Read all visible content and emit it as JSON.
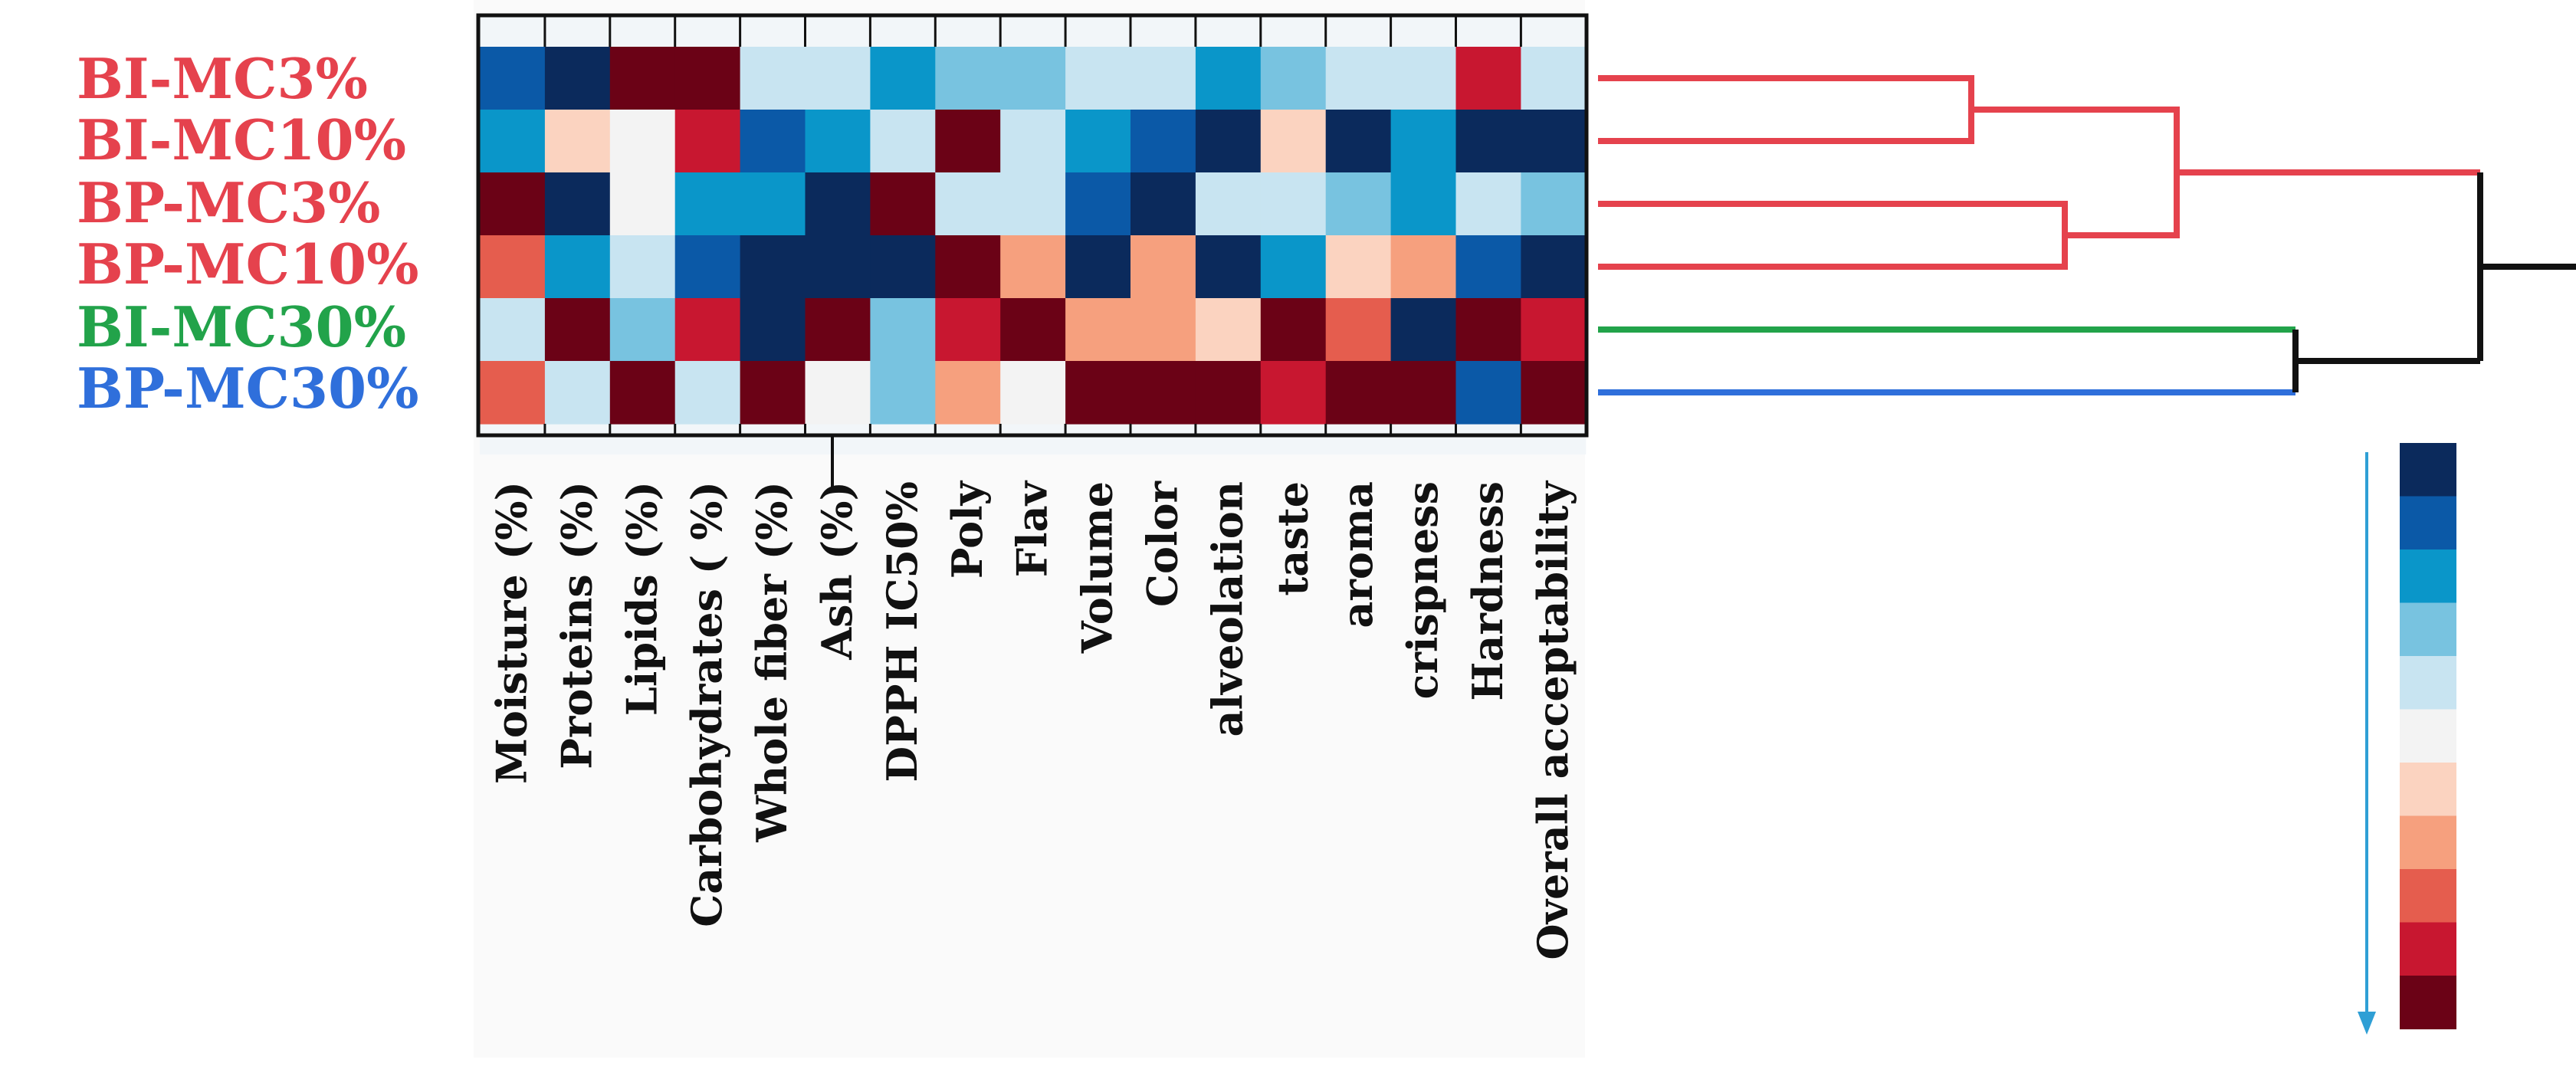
{
  "chart_data": {
    "type": "heatmap",
    "title": "",
    "rows": [
      "BI-MC3%",
      "BI-MC10%",
      "BP-MC3%",
      "BP-MC10%",
      "BI-MC30%",
      "BP-MC30%"
    ],
    "row_label_colors": [
      "#e5424d",
      "#e5424d",
      "#e5424d",
      "#e5424d",
      "#22a34a",
      "#2f6fdb"
    ],
    "columns": [
      "Moisture (%)",
      "Proteins (%)",
      "Lipids  (%)",
      "Carbohydrates ( %)",
      "Whole fiber  (%)",
      "Ash (%)",
      "DPPH IC50%",
      "Poly",
      "Flav",
      "Volume",
      "Color",
      "alveolation",
      "taste",
      "aroma",
      "crispness",
      "Hardness",
      "Overall acceptability"
    ],
    "values": [
      [
        4,
        6,
        -5,
        -5,
        1,
        1,
        3,
        2,
        2,
        1,
        1,
        3,
        2,
        1,
        1,
        -4,
        1
      ],
      [
        3,
        -1,
        0,
        -4,
        4,
        3,
        1,
        -5,
        1,
        3,
        4,
        5,
        -1,
        5,
        3,
        6,
        6
      ],
      [
        -5,
        5,
        0,
        3,
        3,
        5,
        -5,
        1,
        1,
        4,
        5,
        1,
        1,
        2,
        3,
        1,
        2
      ],
      [
        -3,
        3,
        1,
        4,
        5,
        6,
        6,
        -5,
        -2,
        5,
        -2,
        6,
        3,
        -1,
        -2,
        4,
        5
      ],
      [
        1,
        -5,
        2,
        -4,
        5,
        -5,
        2,
        -4,
        -5,
        -2,
        -2,
        -1,
        -5,
        -3,
        6,
        -5,
        -4
      ],
      [
        -3,
        1,
        -5,
        1,
        -5,
        0,
        2,
        -2,
        0,
        -5,
        -5,
        -5,
        -4,
        -5,
        -5,
        4,
        -5
      ]
    ],
    "color_scale": [
      "#0b2a5c",
      "#0b59a7",
      "#0a96c9",
      "#78c3e0",
      "#c8e4f1",
      "#f3f3f3",
      "#fbd3c0",
      "#f6a07e",
      "#e55d4e",
      "#c81730",
      "#6b0216"
    ],
    "color_scale_order": "top = highest (dark blue) to bottom = lowest (dark red)",
    "dendrogram": {
      "leaf_order": [
        "BI-MC3%",
        "BI-MC10%",
        "BP-MC3%",
        "BP-MC10%",
        "BI-MC30%",
        "BP-MC30%"
      ],
      "clusters": [
        {
          "members": [
            "BI-MC3%",
            "BI-MC10%"
          ],
          "color": "#e5424d"
        },
        {
          "members": [
            "BP-MC3%",
            "BP-MC10%"
          ],
          "color": "#e5424d"
        },
        {
          "members": [
            "BI-MC3%",
            "BI-MC10%",
            "BP-MC3%",
            "BP-MC10%"
          ],
          "color": "#e5424d"
        },
        {
          "members": [
            "BI-MC30%",
            "BP-MC30%"
          ],
          "color": "#111111"
        },
        {
          "members": [
            "all"
          ],
          "color": "#111111"
        }
      ],
      "leaf_branch_colors": [
        "#e5424d",
        "#e5424d",
        "#e5424d",
        "#e5424d",
        "#22a34a",
        "#2f6fdb"
      ]
    },
    "legend_placement": "bottom-right",
    "legend_arrow_color": "#2f9fd5"
  }
}
